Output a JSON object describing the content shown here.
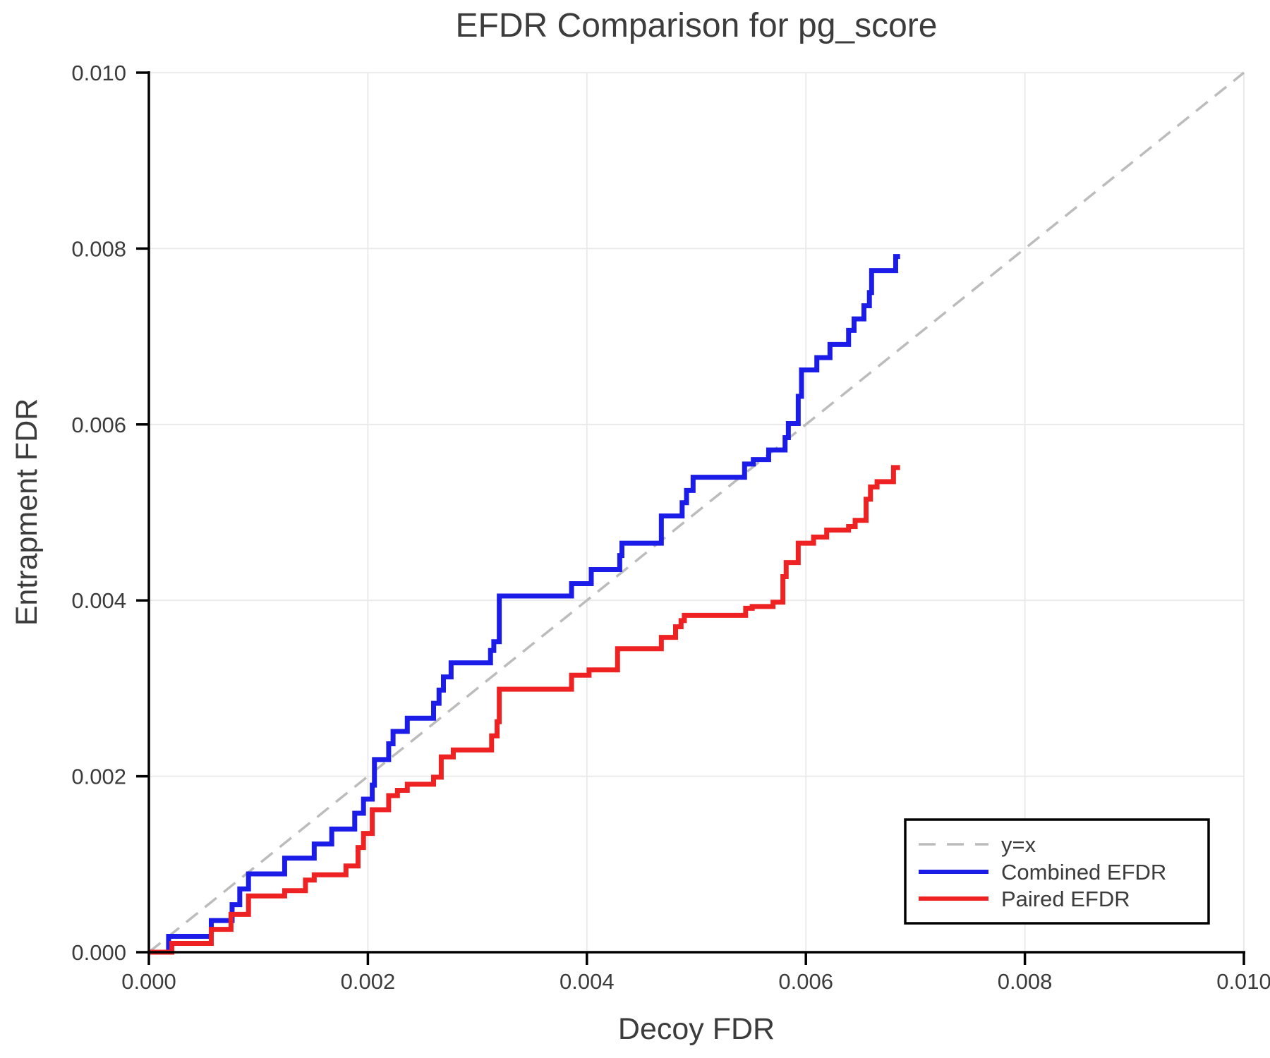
{
  "chart_data": {
    "type": "line",
    "title": "EFDR Comparison for pg_score",
    "xlabel": "Decoy FDR",
    "ylabel": "Entrapment FDR",
    "xlim": [
      0,
      0.01
    ],
    "ylim": [
      0,
      0.01
    ],
    "grid": true,
    "x_ticks": [
      0,
      0.002,
      0.004,
      0.006,
      0.008,
      0.01
    ],
    "x_tick_labels": [
      "0.000",
      "0.002",
      "0.004",
      "0.006",
      "0.008",
      "0.010"
    ],
    "y_ticks": [
      0,
      0.002,
      0.004,
      0.006,
      0.008,
      0.01
    ],
    "y_tick_labels": [
      "0.000",
      "0.002",
      "0.004",
      "0.006",
      "0.008",
      "0.010"
    ],
    "identity_line": {
      "label": "y=x",
      "color": "#bcbcbc",
      "dash": [
        21,
        13
      ],
      "points": [
        [
          0,
          0
        ],
        [
          0.01,
          0.01
        ]
      ]
    },
    "series": [
      {
        "name": "Combined EFDR",
        "color": "#1c1ce8",
        "step": "post",
        "points": [
          [
            0.0,
            0.0
          ],
          [
            0.00018,
            0.00018
          ],
          [
            0.00057,
            0.00036
          ],
          [
            0.00076,
            0.00054
          ],
          [
            0.00083,
            0.00072
          ],
          [
            0.00091,
            0.00089
          ],
          [
            0.00124,
            0.00107
          ],
          [
            0.00151,
            0.00123
          ],
          [
            0.00167,
            0.0014
          ],
          [
            0.00188,
            0.00158
          ],
          [
            0.00196,
            0.00174
          ],
          [
            0.00204,
            0.0019
          ],
          [
            0.00206,
            0.00219
          ],
          [
            0.00219,
            0.00237
          ],
          [
            0.00223,
            0.00251
          ],
          [
            0.00236,
            0.00266
          ],
          [
            0.0026,
            0.00283
          ],
          [
            0.00265,
            0.00298
          ],
          [
            0.00269,
            0.00313
          ],
          [
            0.00276,
            0.00329
          ],
          [
            0.00312,
            0.00343
          ],
          [
            0.00315,
            0.00353
          ],
          [
            0.0032,
            0.00405
          ],
          [
            0.00386,
            0.00419
          ],
          [
            0.00404,
            0.00435
          ],
          [
            0.0043,
            0.00451
          ],
          [
            0.00432,
            0.00465
          ],
          [
            0.00468,
            0.00496
          ],
          [
            0.00487,
            0.00511
          ],
          [
            0.00491,
            0.00525
          ],
          [
            0.00497,
            0.0054
          ],
          [
            0.00544,
            0.00555
          ],
          [
            0.00552,
            0.0056
          ],
          [
            0.00566,
            0.00571
          ],
          [
            0.00581,
            0.00585
          ],
          [
            0.00584,
            0.00601
          ],
          [
            0.00593,
            0.00632
          ],
          [
            0.00596,
            0.00662
          ],
          [
            0.0061,
            0.00676
          ],
          [
            0.00622,
            0.00691
          ],
          [
            0.00639,
            0.00707
          ],
          [
            0.00644,
            0.0072
          ],
          [
            0.00653,
            0.00735
          ],
          [
            0.00658,
            0.0075
          ],
          [
            0.0066,
            0.00775
          ],
          [
            0.00682,
            0.00791
          ],
          [
            0.00686,
            0.00791
          ]
        ]
      },
      {
        "name": "Paired EFDR",
        "color": "#ee2222",
        "step": "post",
        "points": [
          [
            0.0,
            0.0
          ],
          [
            0.00021,
            0.0001
          ],
          [
            0.00057,
            0.00026
          ],
          [
            0.00075,
            0.00043
          ],
          [
            0.00091,
            0.00064
          ],
          [
            0.00124,
            0.0007
          ],
          [
            0.00143,
            0.00082
          ],
          [
            0.00151,
            0.00088
          ],
          [
            0.0018,
            0.00098
          ],
          [
            0.00191,
            0.00119
          ],
          [
            0.00196,
            0.00135
          ],
          [
            0.00204,
            0.00162
          ],
          [
            0.00219,
            0.00178
          ],
          [
            0.00227,
            0.00184
          ],
          [
            0.00236,
            0.00191
          ],
          [
            0.0026,
            0.00199
          ],
          [
            0.00267,
            0.00222
          ],
          [
            0.00278,
            0.0023
          ],
          [
            0.00313,
            0.00246
          ],
          [
            0.00318,
            0.00262
          ],
          [
            0.0032,
            0.00299
          ],
          [
            0.00386,
            0.00315
          ],
          [
            0.00402,
            0.00321
          ],
          [
            0.00428,
            0.00345
          ],
          [
            0.00468,
            0.00358
          ],
          [
            0.00481,
            0.0037
          ],
          [
            0.00486,
            0.00377
          ],
          [
            0.00489,
            0.00383
          ],
          [
            0.00545,
            0.00391
          ],
          [
            0.00551,
            0.00393
          ],
          [
            0.0057,
            0.00398
          ],
          [
            0.00579,
            0.00427
          ],
          [
            0.00582,
            0.00443
          ],
          [
            0.00593,
            0.00465
          ],
          [
            0.00607,
            0.00472
          ],
          [
            0.00619,
            0.0048
          ],
          [
            0.00639,
            0.00484
          ],
          [
            0.00645,
            0.00491
          ],
          [
            0.00655,
            0.00515
          ],
          [
            0.00659,
            0.00529
          ],
          [
            0.00665,
            0.00535
          ],
          [
            0.0068,
            0.00551
          ],
          [
            0.00686,
            0.00551
          ]
        ]
      }
    ],
    "legend": {
      "position": "lower-right",
      "entries": [
        {
          "label": "y=x"
        },
        {
          "label": "Combined EFDR"
        },
        {
          "label": "Paired EFDR"
        }
      ]
    }
  },
  "style": {
    "background": "#ffffff",
    "grid_color": "#e9e9e9",
    "spine_color": "#000000",
    "text_color": "#3c3c3c",
    "curve_width": 7,
    "identity_width": 3.5
  }
}
